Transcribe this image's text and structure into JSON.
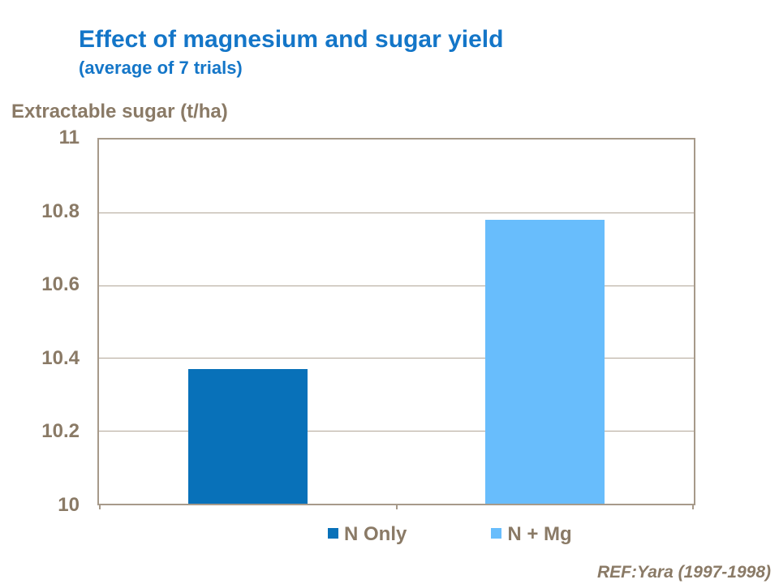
{
  "page": {
    "background": "#FFFFFF"
  },
  "header": {
    "title": "Effect of magnesium and sugar yield",
    "subtitle": "(average of 7 trials)",
    "title_color": "#1476C8"
  },
  "chart": {
    "axis_title": "Extractable sugar (t/ha)",
    "text_color": "#8A7A66",
    "border_color": "#A79A8A",
    "gridline_color": "#B2A698",
    "plot_background": "#FFFFFF"
  },
  "chart_data": {
    "type": "bar",
    "title": "Effect of magnesium and sugar yield",
    "subtitle": "(average of 7 trials)",
    "xlabel": "",
    "ylabel": "Extractable sugar (t/ha)",
    "categories": [
      "N Only",
      "N + Mg"
    ],
    "values": [
      10.37,
      10.78
    ],
    "bar_colors": [
      "#0871B9",
      "#68BDFC"
    ],
    "ylim": [
      10,
      11
    ],
    "yticks": [
      11,
      10.8,
      10.6,
      10.4,
      10.2,
      10
    ],
    "grid": true,
    "legend_position": "bottom-center"
  },
  "legend": {
    "items": [
      {
        "label": "N Only",
        "color": "#0871B9"
      },
      {
        "label": "N + Mg",
        "color": "#68BDFC"
      }
    ]
  },
  "footer": {
    "ref": "REF:Yara (1997-1998)"
  }
}
